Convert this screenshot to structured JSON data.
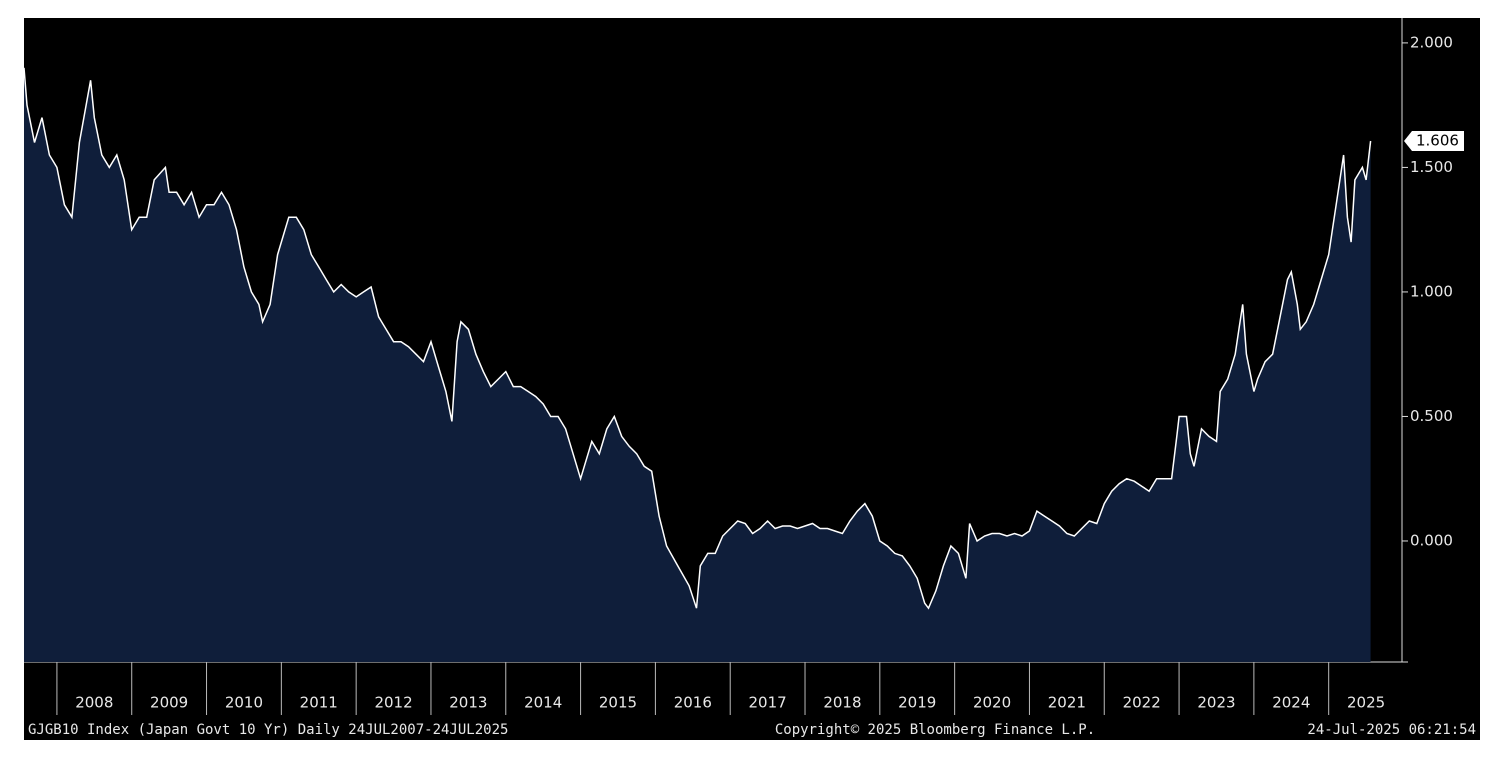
{
  "chart_data": {
    "type": "area",
    "title": "GJGB10 Index (Japan Govt 10 Yr)  Daily 24JUL2007-24JUL2025",
    "copyright": "Copyright© 2025 Bloomberg Finance L.P.",
    "timestamp": "24-Jul-2025 06:21:54",
    "xlim": [
      2007.56,
      2025.98
    ],
    "xticks": [
      2008,
      2009,
      2010,
      2011,
      2012,
      2013,
      2014,
      2015,
      2016,
      2017,
      2018,
      2019,
      2020,
      2021,
      2022,
      2023,
      2024,
      2025
    ],
    "ylim": [
      -0.486,
      2.1
    ],
    "yticks": [
      {
        "value": 0,
        "label": "0.000"
      },
      {
        "value": 0.5,
        "label": "0.500"
      },
      {
        "value": 1,
        "label": "1.000"
      },
      {
        "value": 1.5,
        "label": "1.500"
      },
      {
        "value": 2,
        "label": "2.000"
      }
    ],
    "series": [
      {
        "color": "#ffffff",
        "fill": "#0f1e3a",
        "x": [
          2007.56,
          2007.6,
          2007.7,
          2007.8,
          2007.9,
          2008.0,
          2008.1,
          2008.2,
          2008.3,
          2008.45,
          2008.5,
          2008.6,
          2008.7,
          2008.8,
          2008.9,
          2009.0,
          2009.1,
          2009.2,
          2009.3,
          2009.45,
          2009.5,
          2009.6,
          2009.7,
          2009.8,
          2009.9,
          2010.0,
          2010.1,
          2010.2,
          2010.3,
          2010.4,
          2010.5,
          2010.6,
          2010.7,
          2010.75,
          2010.85,
          2010.95,
          2011.1,
          2011.2,
          2011.3,
          2011.4,
          2011.5,
          2011.6,
          2011.7,
          2011.8,
          2011.9,
          2012.0,
          2012.1,
          2012.2,
          2012.3,
          2012.4,
          2012.5,
          2012.6,
          2012.7,
          2012.8,
          2012.9,
          2013.0,
          2013.1,
          2013.2,
          2013.28,
          2013.35,
          2013.4,
          2013.5,
          2013.6,
          2013.7,
          2013.8,
          2013.9,
          2014.0,
          2014.1,
          2014.2,
          2014.3,
          2014.4,
          2014.5,
          2014.6,
          2014.7,
          2014.8,
          2014.9,
          2015.0,
          2015.05,
          2015.15,
          2015.25,
          2015.35,
          2015.45,
          2015.55,
          2015.65,
          2015.75,
          2015.85,
          2015.95,
          2016.05,
          2016.15,
          2016.3,
          2016.45,
          2016.55,
          2016.6,
          2016.7,
          2016.8,
          2016.9,
          2017.0,
          2017.1,
          2017.2,
          2017.3,
          2017.4,
          2017.5,
          2017.6,
          2017.7,
          2017.8,
          2017.9,
          2018.0,
          2018.1,
          2018.2,
          2018.3,
          2018.4,
          2018.5,
          2018.6,
          2018.7,
          2018.8,
          2018.9,
          2019.0,
          2019.1,
          2019.2,
          2019.3,
          2019.4,
          2019.5,
          2019.6,
          2019.65,
          2019.75,
          2019.85,
          2019.95,
          2020.05,
          2020.15,
          2020.2,
          2020.3,
          2020.4,
          2020.5,
          2020.6,
          2020.7,
          2020.8,
          2020.9,
          2021.0,
          2021.1,
          2021.2,
          2021.3,
          2021.4,
          2021.5,
          2021.6,
          2021.7,
          2021.8,
          2021.9,
          2022.0,
          2022.1,
          2022.2,
          2022.3,
          2022.4,
          2022.5,
          2022.6,
          2022.7,
          2022.8,
          2022.9,
          2022.97,
          2023.0,
          2023.1,
          2023.15,
          2023.2,
          2023.3,
          2023.4,
          2023.5,
          2023.55,
          2023.65,
          2023.75,
          2023.8,
          2023.85,
          2023.9,
          2024.0,
          2024.05,
          2024.15,
          2024.25,
          2024.35,
          2024.45,
          2024.5,
          2024.58,
          2024.62,
          2024.7,
          2024.8,
          2024.9,
          2025.0,
          2025.05,
          2025.15,
          2025.2,
          2025.25,
          2025.3,
          2025.35,
          2025.45,
          2025.5,
          2025.56
        ],
        "values": [
          1.9,
          1.75,
          1.6,
          1.7,
          1.55,
          1.5,
          1.35,
          1.3,
          1.6,
          1.85,
          1.7,
          1.55,
          1.5,
          1.55,
          1.45,
          1.25,
          1.3,
          1.3,
          1.45,
          1.5,
          1.4,
          1.4,
          1.35,
          1.4,
          1.3,
          1.35,
          1.35,
          1.4,
          1.35,
          1.25,
          1.1,
          1.0,
          0.95,
          0.88,
          0.95,
          1.15,
          1.3,
          1.3,
          1.25,
          1.15,
          1.1,
          1.05,
          1.0,
          1.03,
          1.0,
          0.98,
          1.0,
          1.02,
          0.9,
          0.85,
          0.8,
          0.8,
          0.78,
          0.75,
          0.72,
          0.8,
          0.7,
          0.6,
          0.48,
          0.8,
          0.88,
          0.85,
          0.75,
          0.68,
          0.62,
          0.65,
          0.68,
          0.62,
          0.62,
          0.6,
          0.58,
          0.55,
          0.5,
          0.5,
          0.45,
          0.35,
          0.25,
          0.3,
          0.4,
          0.35,
          0.45,
          0.5,
          0.42,
          0.38,
          0.35,
          0.3,
          0.28,
          0.1,
          -0.02,
          -0.1,
          -0.18,
          -0.27,
          -0.1,
          -0.05,
          -0.05,
          0.02,
          0.05,
          0.08,
          0.07,
          0.03,
          0.05,
          0.08,
          0.05,
          0.06,
          0.06,
          0.05,
          0.06,
          0.07,
          0.05,
          0.05,
          0.04,
          0.03,
          0.08,
          0.12,
          0.15,
          0.1,
          0.0,
          -0.02,
          -0.05,
          -0.06,
          -0.1,
          -0.15,
          -0.25,
          -0.27,
          -0.2,
          -0.1,
          -0.02,
          -0.05,
          -0.15,
          0.07,
          0.0,
          0.02,
          0.03,
          0.03,
          0.02,
          0.03,
          0.02,
          0.04,
          0.12,
          0.1,
          0.08,
          0.06,
          0.03,
          0.02,
          0.05,
          0.08,
          0.07,
          0.15,
          0.2,
          0.23,
          0.25,
          0.24,
          0.22,
          0.2,
          0.25,
          0.25,
          0.25,
          0.42,
          0.5,
          0.5,
          0.35,
          0.3,
          0.45,
          0.42,
          0.4,
          0.6,
          0.65,
          0.75,
          0.85,
          0.95,
          0.75,
          0.6,
          0.65,
          0.72,
          0.75,
          0.9,
          1.05,
          1.08,
          0.95,
          0.85,
          0.88,
          0.95,
          1.05,
          1.15,
          1.25,
          1.45,
          1.55,
          1.3,
          1.2,
          1.45,
          1.5,
          1.45,
          1.606
        ]
      }
    ]
  }
}
